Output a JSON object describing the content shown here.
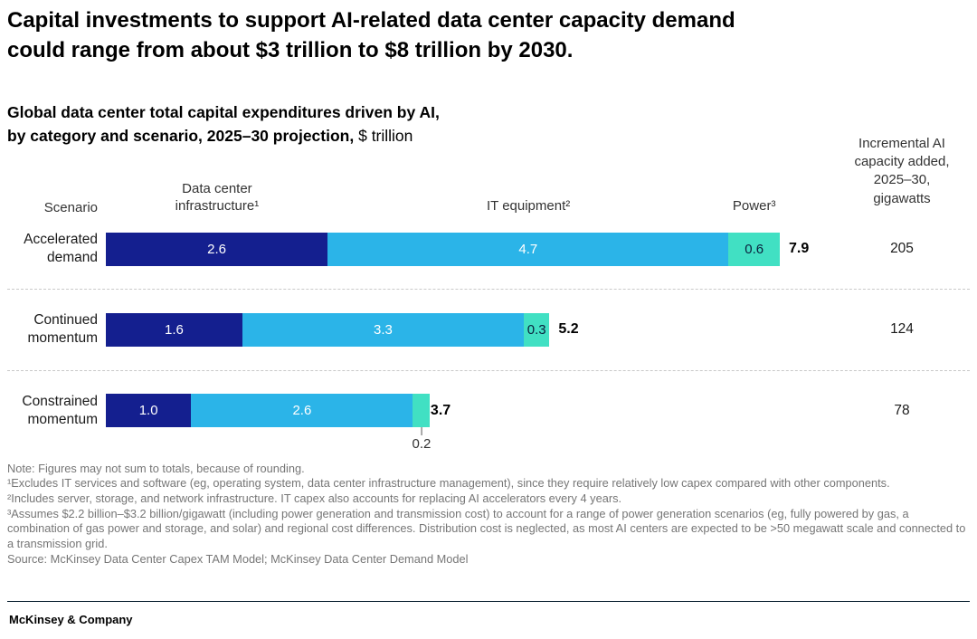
{
  "title": "Capital investments to support AI-related data center capacity demand\ncould range from about $3 trillion to $8 trillion by 2030.",
  "subtitle": {
    "line1": "Global data center total capital expenditures driven by AI,",
    "line2": "by category and scenario, 2025–30 projection,",
    "unit": "$ trillion"
  },
  "columns": {
    "scenario": "Scenario",
    "infrastructure": "Data center infrastructure¹",
    "it_equipment": "IT equipment²",
    "power": "Power³",
    "capacity": "Incremental AI\ncapacity added,\n2025–30,\ngigawatts"
  },
  "chart_data": {
    "type": "bar",
    "orientation": "horizontal",
    "unit": "$ trillion",
    "xmax": 7.9,
    "categories": [
      "Accelerated demand",
      "Continued momentum",
      "Constrained momentum"
    ],
    "series": [
      {
        "name": "Data center infrastructure",
        "color": "#141f8f",
        "label_color": "#ffffff",
        "values": [
          2.6,
          1.6,
          1.0
        ],
        "labels": [
          "2.6",
          "1.6",
          "1.0"
        ]
      },
      {
        "name": "IT equipment",
        "color": "#2bb4e8",
        "label_color": "#ffffff",
        "values": [
          4.7,
          3.3,
          2.6
        ],
        "labels": [
          "4.7",
          "3.3",
          "2.6"
        ]
      },
      {
        "name": "Power",
        "color": "#41e0c3",
        "label_color": "#0a1f3c",
        "values": [
          0.6,
          0.3,
          0.2
        ],
        "labels": [
          "0.6",
          "0.3",
          "0.2"
        ]
      }
    ],
    "totals": [
      7.9,
      5.2,
      3.7
    ],
    "gigawatts": [
      205,
      124,
      78
    ],
    "legend_position": "none",
    "grid": false
  },
  "notes": {
    "note": "Note: Figures may not sum to totals, because of rounding.",
    "footnote1": "¹Excludes IT services and software (eg, operating system, data center infrastructure management), since they require relatively low capex compared with other components.",
    "footnote2": "²Includes server, storage, and network infrastructure. IT capex also accounts for replacing AI accelerators every 4 years.",
    "footnote3": "³Assumes $2.2 billion–$3.2 billion/gigawatt (including power generation and transmission cost) to account for a range of power generation scenarios (eg, fully powered by gas, a combination of gas power and storage, and solar) and regional cost differences. Distribution cost is neglected, as most AI centers are expected to be >50 megawatt scale and connected to a transmission grid.",
    "source": "Source: McKinsey Data Center Capex TAM Model; McKinsey Data Center Demand Model"
  },
  "footer": "McKinsey & Company"
}
